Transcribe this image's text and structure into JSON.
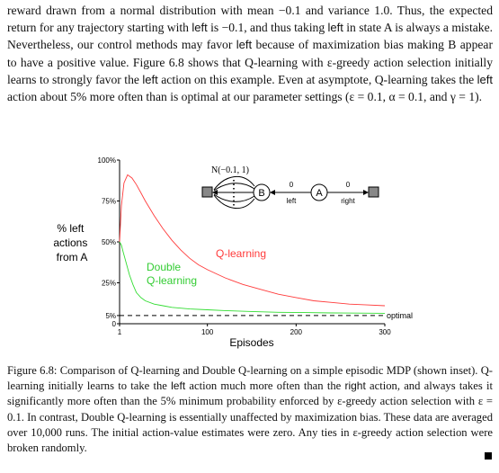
{
  "paragraph": {
    "p1": "reward drawn from a normal distribution with mean −0.1 and variance 1.0. Thus, the expected return for any trajectory starting with ",
    "left1": "left",
    "p2": " is −0.1, and thus taking ",
    "left2": "left",
    "p3": " in state A is always a mistake. Nevertheless, our control methods may favor ",
    "left3": "left",
    "p4": " because of maximization bias making B appear to have a positive value. Figure 6.8 shows that Q-learning with ε-greedy action selection initially learns to strongly favor the ",
    "left4": "left",
    "p5": " action on this example. Even at asymptote, Q-learning takes the ",
    "left5": "left",
    "p6": " action about 5% more often than is optimal at our parameter settings (ε = 0.1, α = 0.1, and γ = 1)."
  },
  "chart_data": {
    "type": "line",
    "ylabel": "% left actions from A",
    "xlabel": "Episodes",
    "y_ticks": [
      "100%",
      "75%",
      "50%",
      "25%",
      "5%",
      "0"
    ],
    "x_ticks": [
      "1",
      "100",
      "200",
      "300"
    ],
    "xlim": [
      1,
      300
    ],
    "ylim": [
      0,
      100
    ],
    "optimal_label": "optimal",
    "optimal_value": 5,
    "series": [
      {
        "name": "Q-learning",
        "color": "#ff3b3b",
        "x": [
          1,
          3,
          6,
          10,
          15,
          20,
          25,
          30,
          40,
          50,
          60,
          70,
          80,
          90,
          100,
          120,
          140,
          160,
          180,
          200,
          220,
          240,
          260,
          280,
          300
        ],
        "values": [
          50,
          72,
          86,
          91,
          89,
          85,
          80,
          75,
          66,
          58,
          51,
          45,
          40,
          36,
          33,
          28,
          24,
          21,
          18,
          16,
          14,
          13,
          12,
          11.5,
          11
        ]
      },
      {
        "name": "Double Q-learning",
        "color": "#33dd33",
        "x": [
          1,
          3,
          5,
          8,
          12,
          16,
          20,
          25,
          30,
          40,
          50,
          60,
          70,
          80,
          100,
          120,
          150,
          180,
          210,
          240,
          270,
          300
        ],
        "values": [
          50,
          48,
          44,
          38,
          30,
          24,
          19,
          16,
          14,
          12,
          11,
          10,
          9.5,
          9,
          8.5,
          8,
          7.5,
          7,
          6.8,
          6.6,
          6.5,
          6.4
        ]
      }
    ]
  },
  "inset": {
    "reward_dist": "N(−0.1, 1)",
    "state_b": "B",
    "state_a": "A",
    "left_reward": "0",
    "left_label": "left",
    "right_reward": "0",
    "right_label": "right"
  },
  "caption": {
    "c1": "Figure 6.8: Comparison of Q-learning and Double Q-learning on a simple episodic MDP (shown inset). Q-learning initially learns to take the ",
    "left": "left",
    "c2": " action much more often than the ",
    "right": "right",
    "c3": " action, and always takes it significantly more often than the 5% minimum probability enforced by ε-greedy action selection with ε = 0.1. In contrast, Double Q-learning is essentially unaffected by maximization bias. These data are averaged over 10,000 runs. The initial action-value estimates were zero. Any ties in ε-greedy action selection were broken randomly."
  }
}
